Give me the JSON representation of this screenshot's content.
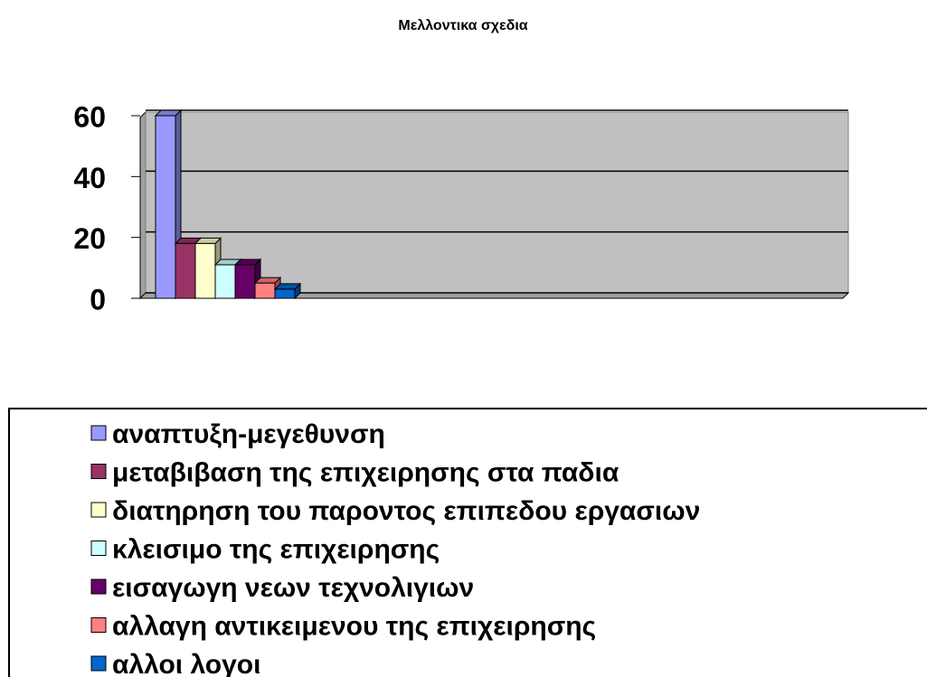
{
  "chart_data": {
    "type": "bar",
    "title": "Μελλοντικα σχεδια",
    "categories": [
      null
    ],
    "series": [
      {
        "name": "αναπτυξη-μεγεθυνση",
        "color": "#9999ff",
        "values": [
          60
        ]
      },
      {
        "name": "μεταβιβαση της επιχειρησης στα παδια",
        "color": "#993366",
        "values": [
          18
        ]
      },
      {
        "name": "διατηρηση του παροντος επιπεδου εργασιων",
        "color": "#ffffcc",
        "values": [
          18
        ]
      },
      {
        "name": "κλεισιμο της επιχειρησης",
        "color": "#ccffff",
        "values": [
          11
        ]
      },
      {
        "name": "εισαγωγη νεων τεχνολιγιων",
        "color": "#660066",
        "values": [
          11
        ]
      },
      {
        "name": "αλλαγη αντικειμενου της επιχειρησης",
        "color": "#ff8080",
        "values": [
          5
        ]
      },
      {
        "name": "αλλοι λογοι",
        "color": "#0066cc",
        "values": [
          3
        ]
      }
    ],
    "ylim": [
      0,
      60
    ],
    "yticks": [
      0,
      20,
      40,
      60
    ],
    "grid": true,
    "legend": "bottom"
  }
}
